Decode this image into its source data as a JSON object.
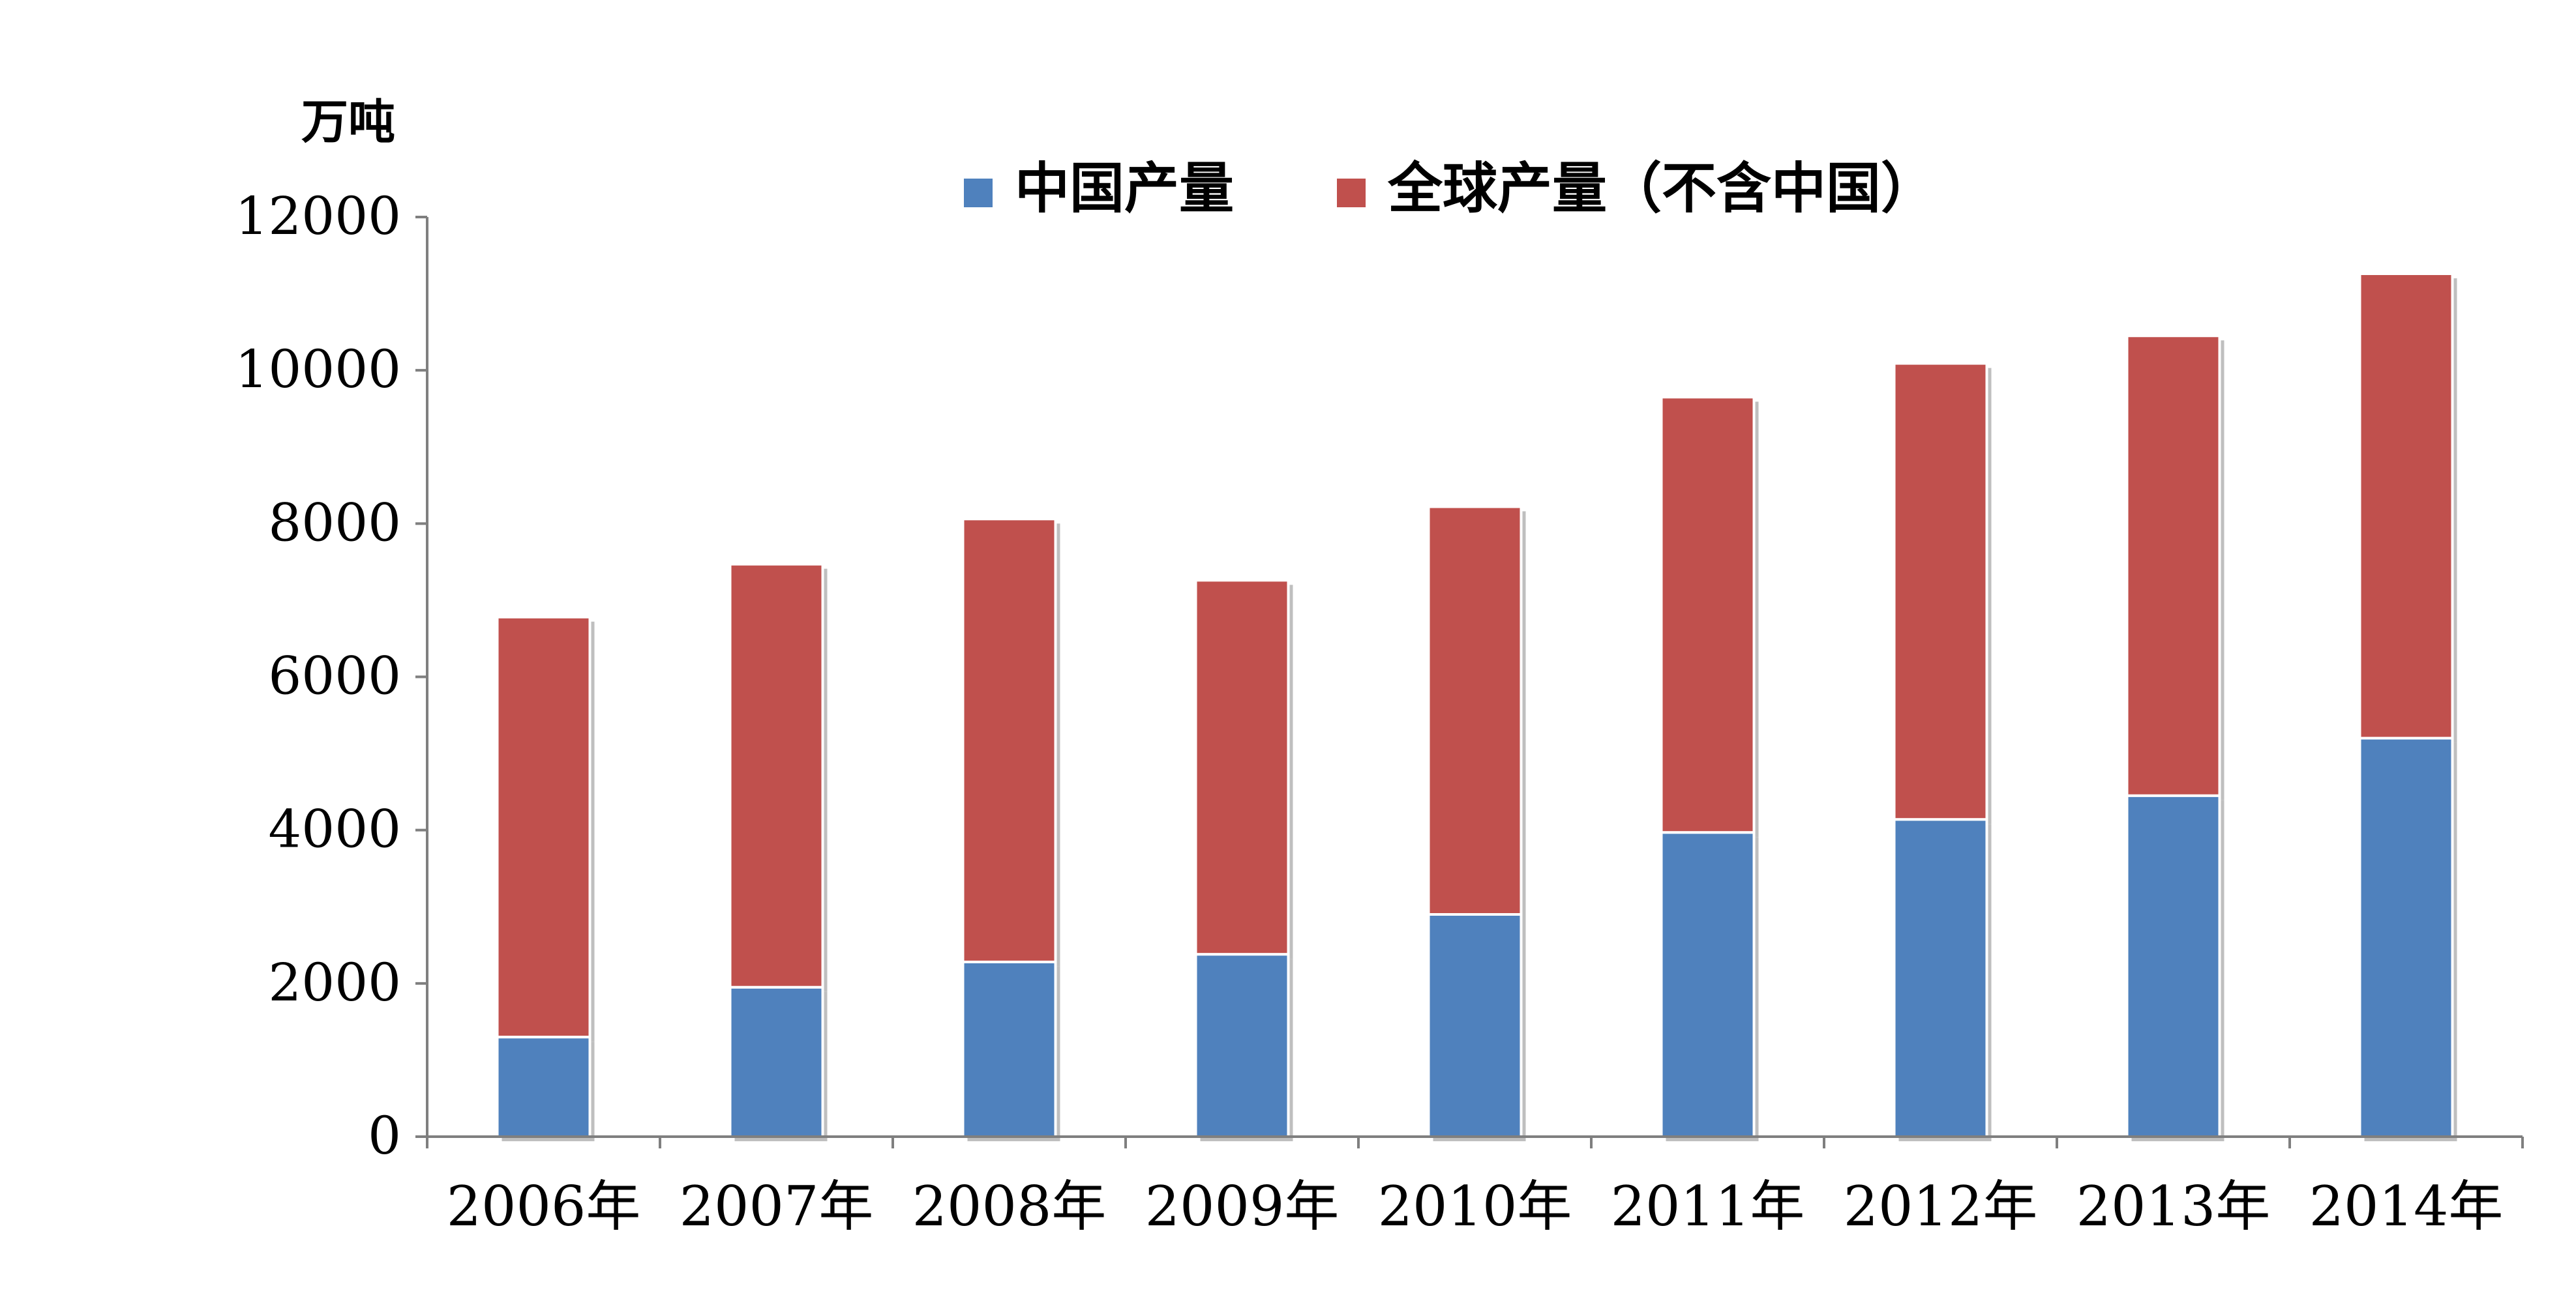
{
  "chart_data": {
    "type": "bar",
    "stacked": true,
    "unit_label": "万吨",
    "categories": [
      "2006年",
      "2007年",
      "2008年",
      "2009年",
      "2010年",
      "2011年",
      "2012年",
      "2013年",
      "2014年"
    ],
    "series": [
      {
        "name": "中国产量",
        "color": "#4F81BD",
        "values": [
          1300,
          1950,
          2280,
          2380,
          2900,
          3970,
          4140,
          4450,
          5200
        ]
      },
      {
        "name": "全球产量（不含中国）",
        "color": "#C0504D",
        "values": [
          5480,
          5520,
          5780,
          4880,
          5320,
          5680,
          5950,
          6000,
          6060
        ]
      }
    ],
    "y_ticks": [
      "0",
      "2000",
      "4000",
      "6000",
      "8000",
      "10000",
      "12000"
    ],
    "ylim": [
      0,
      12000
    ],
    "grid": false,
    "legend_position": "top-center"
  }
}
